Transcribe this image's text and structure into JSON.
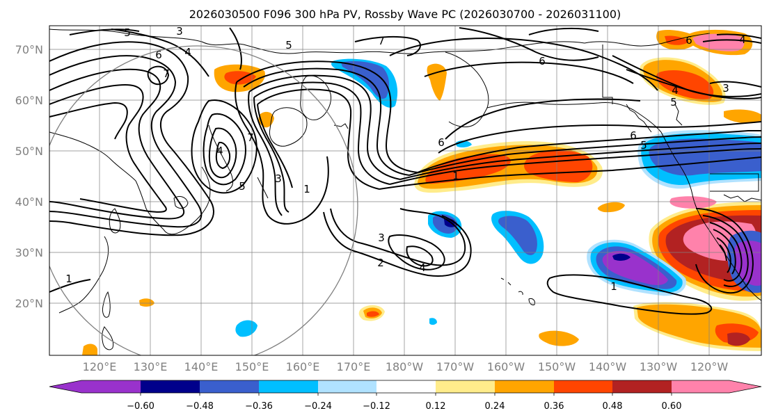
{
  "title": "2026030500 F096 300 hPa PV, Rossby Wave PC (2026030700 - 2026031100)",
  "lat_labels": [
    "70°N",
    "60°N",
    "50°N",
    "40°N",
    "30°N",
    "20°N"
  ],
  "lon_labels": [
    "120°E",
    "130°E",
    "140°E",
    "150°E",
    "160°E",
    "170°E",
    "180°W",
    "170°W",
    "160°W",
    "150°W",
    "140°W",
    "130°W",
    "120°W"
  ],
  "colorbar": {
    "ticks": [
      "−0.60",
      "−0.48",
      "−0.36",
      "−0.24",
      "−0.12",
      "0.12",
      "0.24",
      "0.36",
      "0.48",
      "0.60"
    ],
    "colors": [
      "#9932CC",
      "#00008B",
      "#3A5FCD",
      "#00BFFF",
      "#B0E2FF",
      "#FFFFFF",
      "#FFEC8B",
      "#FFA500",
      "#FF4500",
      "#B22222",
      "#FF82AB"
    ]
  },
  "contour_labels": [
    "5",
    "3",
    "4",
    "6",
    "7",
    "5",
    "7",
    "6",
    "4",
    "3",
    "6",
    "5",
    "6",
    "7",
    "5",
    "4",
    "1",
    "3",
    "2",
    "4",
    "1",
    "1",
    "1",
    "5",
    "6",
    "3",
    "4"
  ]
}
